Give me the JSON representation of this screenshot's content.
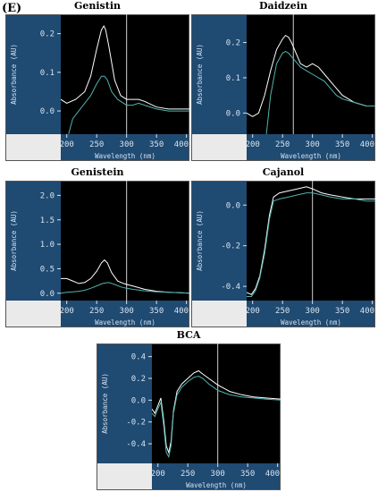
{
  "panel_label": "(E)",
  "chart_data": [
    {
      "type": "line",
      "title": "Genistin",
      "xlabel": "Wavelength (nm)",
      "ylabel": "Absorbance (AU)",
      "xlim": [
        190,
        405
      ],
      "ylim": [
        -0.06,
        0.25
      ],
      "xticks": [
        200,
        250,
        300,
        350,
        400
      ],
      "xtick_labels": [
        "200",
        "250",
        "300",
        "350",
        "400"
      ],
      "yticks": [
        0.0,
        0.1,
        0.2
      ],
      "ytick_labels": [
        "0.0",
        "0.1",
        "0.2"
      ],
      "marker_x": 300,
      "series": [
        {
          "color": "#ffffff",
          "x": [
            190,
            200,
            215,
            230,
            240,
            250,
            258,
            262,
            265,
            270,
            280,
            290,
            300,
            310,
            320,
            330,
            350,
            370,
            390,
            405
          ],
          "y": [
            0.03,
            0.02,
            0.03,
            0.05,
            0.09,
            0.16,
            0.21,
            0.22,
            0.21,
            0.17,
            0.08,
            0.04,
            0.03,
            0.03,
            0.03,
            0.025,
            0.01,
            0.005,
            0.005,
            0.005
          ]
        },
        {
          "color": "#4fb3b0",
          "x": [
            203,
            210,
            220,
            230,
            240,
            250,
            258,
            263,
            268,
            275,
            285,
            295,
            300,
            310,
            320,
            330,
            350,
            370,
            390,
            405
          ],
          "y": [
            -0.06,
            -0.02,
            0.0,
            0.02,
            0.04,
            0.07,
            0.09,
            0.09,
            0.08,
            0.05,
            0.03,
            0.02,
            0.015,
            0.015,
            0.02,
            0.015,
            0.005,
            0.0,
            0.0,
            0.0
          ]
        }
      ]
    },
    {
      "type": "line",
      "title": "Daidzein",
      "xlabel": "Wavelength (nm)",
      "ylabel": "Absorbance (AU)",
      "xlim": [
        190,
        405
      ],
      "ylim": [
        -0.06,
        0.28
      ],
      "xticks": [
        200,
        250,
        300,
        350,
        400
      ],
      "xtick_labels": [
        "200",
        "250",
        "300",
        "350",
        "400"
      ],
      "yticks": [
        0.0,
        0.1,
        0.2
      ],
      "ytick_labels": [
        "0.0",
        "0.1",
        "0.2"
      ],
      "marker_x": 268,
      "series": [
        {
          "color": "#ffffff",
          "x": [
            190,
            200,
            210,
            220,
            230,
            240,
            250,
            255,
            260,
            265,
            270,
            280,
            290,
            300,
            310,
            320,
            330,
            340,
            350,
            370,
            390,
            405
          ],
          "y": [
            0.0,
            -0.01,
            0.0,
            0.05,
            0.12,
            0.18,
            0.21,
            0.22,
            0.215,
            0.2,
            0.18,
            0.14,
            0.13,
            0.14,
            0.13,
            0.11,
            0.09,
            0.07,
            0.05,
            0.03,
            0.02,
            0.02
          ]
        },
        {
          "color": "#4fb3b0",
          "x": [
            223,
            230,
            240,
            250,
            255,
            260,
            270,
            280,
            290,
            300,
            310,
            320,
            330,
            340,
            350,
            370,
            390,
            405
          ],
          "y": [
            -0.06,
            0.05,
            0.14,
            0.17,
            0.175,
            0.17,
            0.15,
            0.13,
            0.12,
            0.11,
            0.1,
            0.09,
            0.07,
            0.05,
            0.04,
            0.03,
            0.02,
            0.02
          ]
        }
      ]
    },
    {
      "type": "line",
      "title": "Genistein",
      "xlabel": "Wavelength (nm)",
      "ylabel": "Absorbance (AU)",
      "xlim": [
        190,
        405
      ],
      "ylim": [
        -0.15,
        2.3
      ],
      "xticks": [
        200,
        250,
        300,
        350,
        400
      ],
      "xtick_labels": [
        "200",
        "250",
        "300",
        "350",
        "400"
      ],
      "yticks": [
        0.0,
        0.5,
        1.0,
        1.5,
        2.0
      ],
      "ytick_labels": [
        "0.0",
        "0.5",
        "1.0",
        "1.5",
        "2.0"
      ],
      "marker_x": 300,
      "series": [
        {
          "color": "#ffffff",
          "x": [
            190,
            200,
            210,
            220,
            230,
            240,
            250,
            258,
            263,
            268,
            275,
            285,
            295,
            300,
            310,
            330,
            350,
            370,
            390,
            405
          ],
          "y": [
            0.3,
            0.3,
            0.25,
            0.2,
            0.22,
            0.3,
            0.45,
            0.62,
            0.68,
            0.62,
            0.42,
            0.25,
            0.2,
            0.18,
            0.15,
            0.08,
            0.04,
            0.02,
            0.01,
            0.0
          ]
        },
        {
          "color": "#4fb3b0",
          "x": [
            190,
            200,
            210,
            220,
            230,
            240,
            250,
            260,
            270,
            280,
            290,
            300,
            310,
            330,
            350,
            370,
            390,
            405
          ],
          "y": [
            0.0,
            0.02,
            0.03,
            0.04,
            0.06,
            0.1,
            0.15,
            0.2,
            0.22,
            0.18,
            0.13,
            0.1,
            0.08,
            0.05,
            0.03,
            0.02,
            0.01,
            0.0
          ]
        }
      ]
    },
    {
      "type": "line",
      "title": "Cajanol",
      "xlabel": "Wavelength (nm)",
      "ylabel": "Absorbance (AU)",
      "xlim": [
        190,
        405
      ],
      "ylim": [
        -0.47,
        0.12
      ],
      "xticks": [
        200,
        250,
        300,
        350,
        400
      ],
      "xtick_labels": [
        "200",
        "250",
        "300",
        "350",
        "400"
      ],
      "yticks": [
        -0.4,
        -0.2,
        0.0
      ],
      "ytick_labels": [
        "-0.4",
        "-0.2",
        "0.0"
      ],
      "marker_x": 300,
      "series": [
        {
          "color": "#ffffff",
          "x": [
            190,
            198,
            205,
            212,
            220,
            228,
            235,
            245,
            260,
            275,
            290,
            300,
            315,
            330,
            350,
            370,
            390,
            405
          ],
          "y": [
            -0.43,
            -0.44,
            -0.41,
            -0.35,
            -0.22,
            -0.05,
            0.04,
            0.06,
            0.07,
            0.08,
            0.09,
            0.08,
            0.06,
            0.05,
            0.04,
            0.03,
            0.03,
            0.03
          ]
        },
        {
          "color": "#4fb3b0",
          "x": [
            190,
            198,
            205,
            212,
            220,
            228,
            235,
            245,
            260,
            275,
            290,
            300,
            315,
            330,
            350,
            370,
            390,
            405
          ],
          "y": [
            -0.45,
            -0.45,
            -0.42,
            -0.36,
            -0.24,
            -0.07,
            0.02,
            0.03,
            0.04,
            0.05,
            0.06,
            0.06,
            0.05,
            0.04,
            0.03,
            0.03,
            0.02,
            0.02
          ]
        }
      ]
    },
    {
      "type": "line",
      "title": "BCA",
      "xlabel": "Wavelength (nm)",
      "ylabel": "Absorbance (AU)",
      "xlim": [
        190,
        405
      ],
      "ylim": [
        -0.58,
        0.52
      ],
      "xticks": [
        200,
        250,
        300,
        350,
        400
      ],
      "xtick_labels": [
        "200",
        "250",
        "300",
        "350",
        "400"
      ],
      "yticks": [
        -0.4,
        -0.2,
        0.0,
        0.2,
        0.4
      ],
      "ytick_labels": [
        "-0.4",
        "-0.2",
        "0.0",
        "0.2",
        "0.4"
      ],
      "marker_x": 300,
      "series": [
        {
          "color": "#ffffff",
          "x": [
            190,
            195,
            200,
            205,
            210,
            214,
            218,
            222,
            226,
            232,
            240,
            250,
            260,
            268,
            275,
            285,
            300,
            320,
            340,
            360,
            380,
            405
          ],
          "y": [
            -0.08,
            -0.12,
            -0.05,
            0.02,
            -0.2,
            -0.42,
            -0.48,
            -0.38,
            -0.1,
            0.08,
            0.15,
            0.2,
            0.25,
            0.27,
            0.24,
            0.2,
            0.14,
            0.08,
            0.05,
            0.03,
            0.02,
            0.01
          ]
        },
        {
          "color": "#4fb3b0",
          "x": [
            190,
            195,
            200,
            205,
            210,
            214,
            218,
            222,
            226,
            232,
            240,
            250,
            260,
            268,
            275,
            285,
            300,
            320,
            340,
            360,
            380,
            405
          ],
          "y": [
            -0.12,
            -0.15,
            -0.08,
            -0.02,
            -0.25,
            -0.48,
            -0.52,
            -0.42,
            -0.12,
            0.05,
            0.12,
            0.17,
            0.21,
            0.22,
            0.2,
            0.15,
            0.09,
            0.05,
            0.03,
            0.02,
            0.01,
            0.0
          ]
        }
      ]
    }
  ]
}
